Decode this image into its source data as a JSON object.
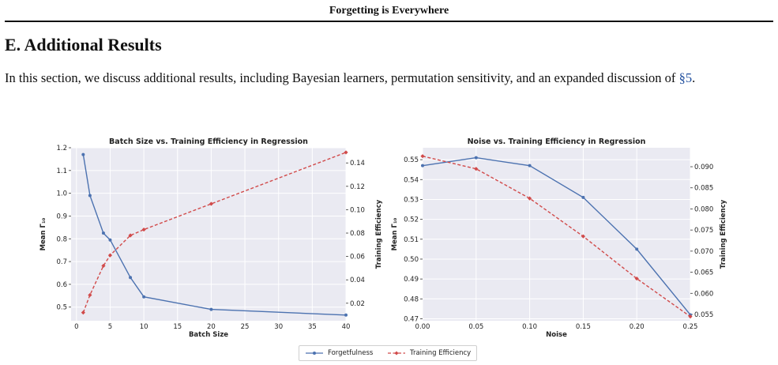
{
  "page": {
    "running_head": "Forgetting is Everywhere",
    "section_title": "E. Additional Results",
    "body_text_before_ref": "In this section, we discuss additional results, including Bayesian learners, permutation sensitivity, and an expanded discussion of ",
    "body_ref": "§5",
    "body_text_after_ref": "."
  },
  "legend": {
    "forgetfulness": "Forgetfulness",
    "training_efficiency": "Training Efficiency"
  },
  "colors": {
    "forgetfulness": "#4c72b0",
    "training_efficiency": "#d14a4a",
    "plot_bg": "#eaeaf2",
    "grid": "#ffffff"
  },
  "chart_data": [
    {
      "type": "line",
      "title": "Batch Size vs. Training Efficiency in Regression",
      "xlabel": "Batch Size",
      "ylabel": "Mean Γ₁₀",
      "y2label": "Training Efficiency",
      "xlim": [
        -0.8,
        40
      ],
      "ylim": [
        0.44,
        1.2
      ],
      "y2lim": [
        0.005,
        0.153
      ],
      "xticks": [
        0,
        5,
        10,
        15,
        20,
        25,
        30,
        35,
        40
      ],
      "yticks": [
        0.5,
        0.6,
        0.7,
        0.8,
        0.9,
        1.0,
        1.1,
        1.2
      ],
      "y2ticks": [
        0.02,
        0.04,
        0.06,
        0.08,
        0.1,
        0.12,
        0.14
      ],
      "x": [
        1,
        2,
        4,
        5,
        8,
        10,
        20,
        40
      ],
      "series": [
        {
          "name": "Forgetfulness",
          "axis": "left",
          "style": "solid",
          "values": [
            1.17,
            0.99,
            0.825,
            0.795,
            0.63,
            0.545,
            0.49,
            0.465
          ]
        },
        {
          "name": "Training Efficiency",
          "axis": "right",
          "style": "dashed",
          "values": [
            0.012,
            0.027,
            0.052,
            0.061,
            0.078,
            0.083,
            0.105,
            0.149
          ]
        }
      ],
      "grid": true,
      "legend": "bottom-center"
    },
    {
      "type": "line",
      "title": "Noise vs. Training Efficiency in Regression",
      "xlabel": "Noise",
      "ylabel": "Mean Γ₁₀",
      "y2label": "Training Efficiency",
      "xlim": [
        0.0,
        0.25
      ],
      "ylim": [
        0.469,
        0.556
      ],
      "y2lim": [
        0.0535,
        0.0945
      ],
      "xticks": [
        0.0,
        0.05,
        0.1,
        0.15,
        0.2,
        0.25
      ],
      "yticks": [
        0.47,
        0.48,
        0.49,
        0.5,
        0.51,
        0.52,
        0.53,
        0.54,
        0.55
      ],
      "y2ticks": [
        0.055,
        0.06,
        0.065,
        0.07,
        0.075,
        0.08,
        0.085,
        0.09
      ],
      "x": [
        0.0,
        0.05,
        0.1,
        0.15,
        0.2,
        0.25
      ],
      "series": [
        {
          "name": "Forgetfulness",
          "axis": "left",
          "style": "solid",
          "values": [
            0.547,
            0.551,
            0.547,
            0.531,
            0.505,
            0.472
          ]
        },
        {
          "name": "Training Efficiency",
          "axis": "right",
          "style": "dashed",
          "values": [
            0.0925,
            0.0895,
            0.0825,
            0.0735,
            0.0635,
            0.0545
          ]
        }
      ],
      "grid": true,
      "legend": "bottom-center"
    }
  ]
}
